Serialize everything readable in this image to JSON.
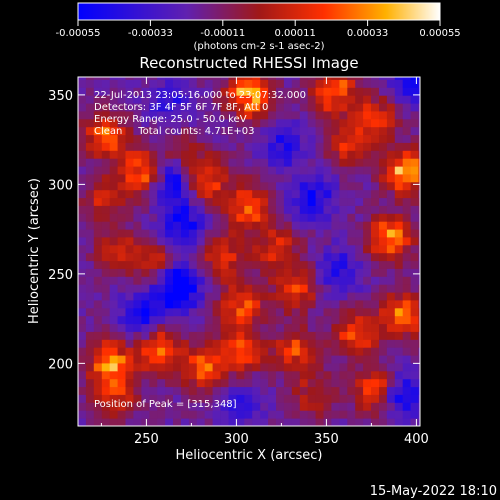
{
  "chart_data": {
    "type": "heatmap",
    "title": "Reconstructed RHESSI Image",
    "xlabel": "Heliocentric X (arcsec)",
    "ylabel": "Heliocentric Y (arcsec)",
    "xlim": [
      212,
      402
    ],
    "ylim": [
      165,
      360
    ],
    "x_ticks": [
      250,
      300,
      350,
      400
    ],
    "y_ticks": [
      200,
      250,
      300,
      350
    ],
    "colorbar": {
      "range": [
        -0.00055,
        0.00055
      ],
      "ticks": [
        "-0.00055",
        "-0.00033",
        "-0.00011",
        "0.00011",
        "0.00033",
        "0.00055"
      ],
      "unit_label": "(photons cm-2 s-1 asec-2)",
      "colors": [
        "#0000ff",
        "#7a2fc0",
        "#c02020",
        "#ff5000",
        "#ffd000",
        "#ffffff"
      ]
    },
    "annotations": [
      "22-Jul-2013 23:05:16.000 to 23:07:32.000",
      "Detectors: 3F 4F 5F 6F 7F 8F, Att 0",
      "Energy Range: 25.0 - 50.0 keV",
      "Clean     Total counts: 4.71E+03",
      "Position of Peak = [315,348]"
    ],
    "emission_regions": [
      {
        "x": 392,
        "y": 305,
        "intensity": 0.00055
      },
      {
        "x": 383,
        "y": 268,
        "intensity": 0.0005
      },
      {
        "x": 305,
        "y": 348,
        "intensity": 0.00055
      },
      {
        "x": 352,
        "y": 350,
        "intensity": 0.00045
      },
      {
        "x": 375,
        "y": 335,
        "intensity": 0.00035
      },
      {
        "x": 225,
        "y": 325,
        "intensity": 0.0004
      },
      {
        "x": 225,
        "y": 290,
        "intensity": 0.00025
      },
      {
        "x": 245,
        "y": 305,
        "intensity": 0.00045
      },
      {
        "x": 270,
        "y": 315,
        "intensity": 0.0002
      },
      {
        "x": 282,
        "y": 300,
        "intensity": 0.0004
      },
      {
        "x": 305,
        "y": 285,
        "intensity": 0.00045
      },
      {
        "x": 230,
        "y": 262,
        "intensity": 0.00025
      },
      {
        "x": 250,
        "y": 255,
        "intensity": 0.0003
      },
      {
        "x": 290,
        "y": 258,
        "intensity": 0.00035
      },
      {
        "x": 320,
        "y": 262,
        "intensity": 0.0003
      },
      {
        "x": 330,
        "y": 240,
        "intensity": 0.00035
      },
      {
        "x": 300,
        "y": 230,
        "intensity": 0.0004
      },
      {
        "x": 330,
        "y": 205,
        "intensity": 0.00035
      },
      {
        "x": 365,
        "y": 215,
        "intensity": 0.0004
      },
      {
        "x": 390,
        "y": 225,
        "intensity": 0.00045
      },
      {
        "x": 228,
        "y": 198,
        "intensity": 0.0005
      },
      {
        "x": 255,
        "y": 205,
        "intensity": 0.00045
      },
      {
        "x": 280,
        "y": 195,
        "intensity": 0.0004
      },
      {
        "x": 300,
        "y": 205,
        "intensity": 0.0004
      },
      {
        "x": 375,
        "y": 183,
        "intensity": 0.0004
      },
      {
        "x": 230,
        "y": 180,
        "intensity": 0.0003
      },
      {
        "x": 340,
        "y": 180,
        "intensity": 0.00025
      },
      {
        "x": 360,
        "y": 320,
        "intensity": 0.0003
      }
    ],
    "negative_regions": [
      {
        "x": 263,
        "y": 300,
        "intensity": -0.0004
      },
      {
        "x": 268,
        "y": 275,
        "intensity": -0.00035
      },
      {
        "x": 265,
        "y": 240,
        "intensity": -0.00055
      },
      {
        "x": 245,
        "y": 225,
        "intensity": -0.0003
      },
      {
        "x": 340,
        "y": 290,
        "intensity": -0.0003
      },
      {
        "x": 325,
        "y": 320,
        "intensity": -0.00025
      },
      {
        "x": 395,
        "y": 355,
        "intensity": -0.0003
      },
      {
        "x": 390,
        "y": 180,
        "intensity": -0.0003
      },
      {
        "x": 355,
        "y": 250,
        "intensity": -0.00025
      },
      {
        "x": 300,
        "y": 175,
        "intensity": -0.0002
      },
      {
        "x": 260,
        "y": 345,
        "intensity": -0.0002
      }
    ]
  },
  "footer": {
    "timestamp": "15-May-2022 18:10"
  }
}
